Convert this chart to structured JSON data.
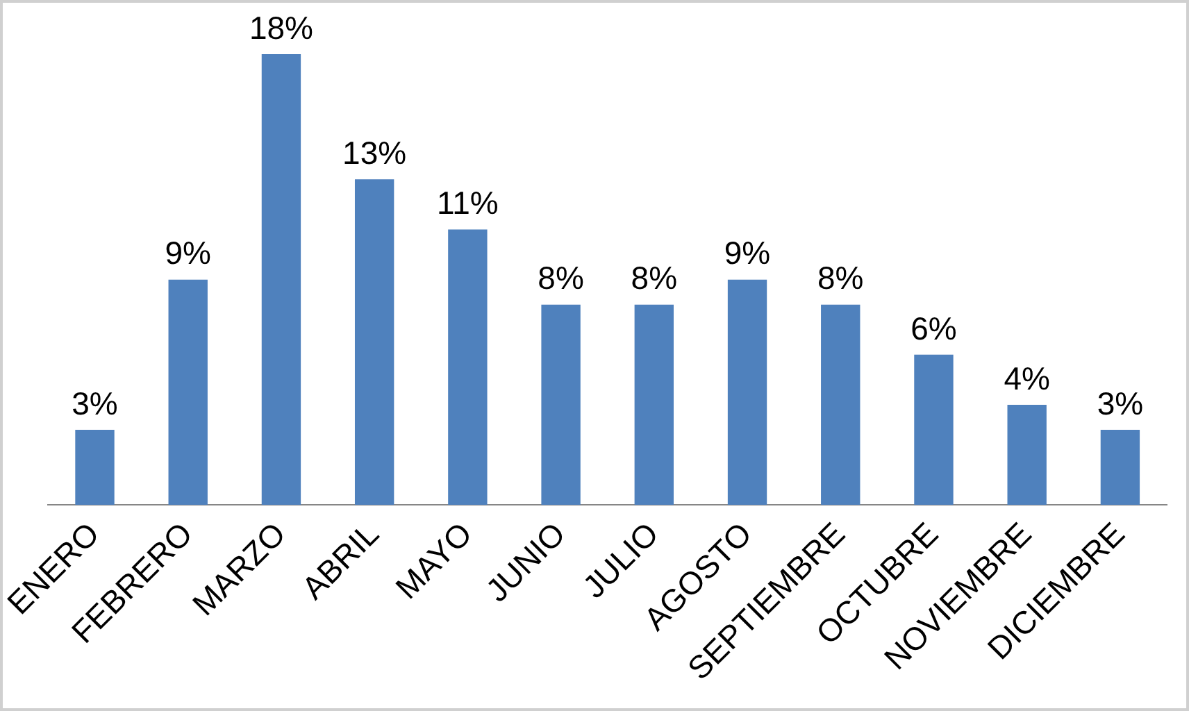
{
  "chart_data": {
    "type": "bar",
    "categories": [
      "ENERO",
      "FEBRERO",
      "MARZO",
      "ABRIL",
      "MAYO",
      "JUNIO",
      "JULIO",
      "AGOSTO",
      "SEPTIEMBRE",
      "OCTUBRE",
      "NOVIEMBRE",
      "DICIEMBRE"
    ],
    "values": [
      3,
      9,
      18,
      13,
      11,
      8,
      8,
      9,
      8,
      6,
      4,
      3
    ],
    "value_labels": [
      "3%",
      "9%",
      "18%",
      "13%",
      "11%",
      "8%",
      "8%",
      "9%",
      "8%",
      "6%",
      "4%",
      "3%"
    ],
    "color": "#4f81bd",
    "grid": false,
    "legend": false
  }
}
